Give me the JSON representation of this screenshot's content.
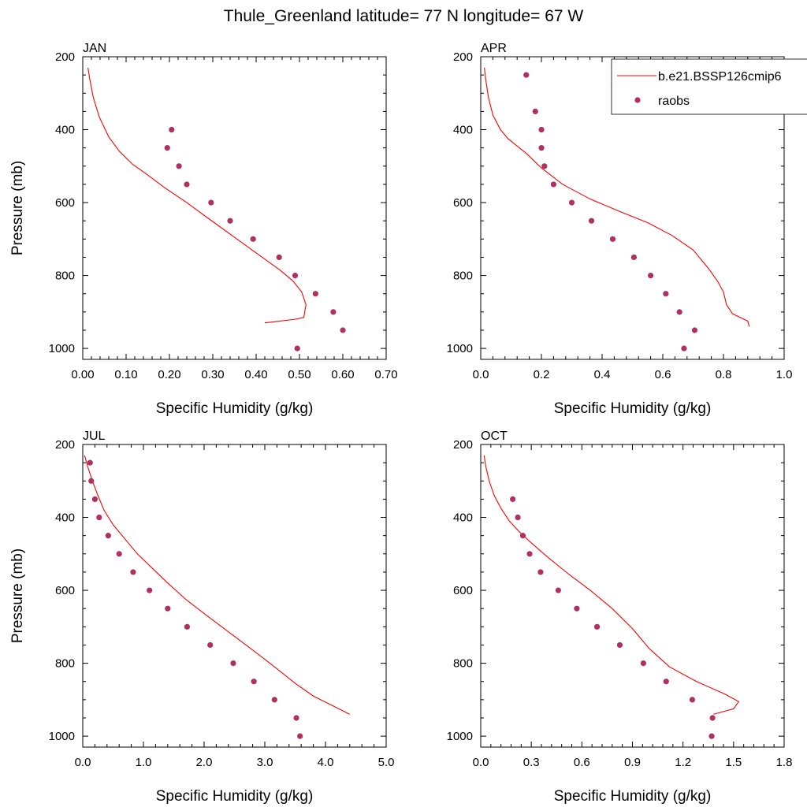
{
  "title": "Thule_Greenland  latitude= 77 N longitude= 67 W",
  "colors": {
    "model": "#ff0000",
    "obs": "#b03060",
    "axis": "#000000"
  },
  "legend": {
    "position": "top-right",
    "entries": [
      {
        "label": "b.e21.BSSP126cmip6",
        "kind": "line"
      },
      {
        "label": "raobs",
        "kind": "marker"
      }
    ]
  },
  "chart_data": [
    {
      "type": "line+scatter",
      "title": "JAN",
      "xlabel": "Specific Humidity (g/kg)",
      "ylabel": "Pressure (mb)",
      "xlim": [
        0,
        0.7
      ],
      "ylim": [
        200,
        1030
      ],
      "y_inverted": true,
      "xticks": [
        0,
        0.1,
        0.2,
        0.3,
        0.4,
        0.5,
        0.6,
        0.7
      ],
      "xtick_labels": [
        "0.00",
        "0.10",
        "0.20",
        "0.30",
        "0.40",
        "0.50",
        "0.60",
        "0.70"
      ],
      "yticks": [
        200,
        400,
        600,
        800,
        1000
      ],
      "ytick_labels": [
        "200",
        "400",
        "600",
        "800",
        "1000"
      ],
      "series": [
        {
          "name": "b.e21.BSSP126cmip6",
          "kind": "line",
          "x": [
            0.012,
            0.016,
            0.024,
            0.038,
            0.06,
            0.085,
            0.115,
            0.145,
            0.19,
            0.24,
            0.28,
            0.315,
            0.35,
            0.385,
            0.42,
            0.455,
            0.485,
            0.505,
            0.515,
            0.51,
            0.49,
            0.42
          ],
          "y": [
            230,
            260,
            310,
            365,
            420,
            460,
            495,
            520,
            560,
            600,
            635,
            665,
            695,
            725,
            755,
            785,
            815,
            845,
            880,
            915,
            920,
            930
          ]
        },
        {
          "name": "raobs",
          "kind": "marker",
          "x": [
            0.205,
            0.195,
            0.222,
            0.24,
            0.296,
            0.34,
            0.393,
            0.453,
            0.49,
            0.537,
            0.578,
            0.6,
            0.495
          ],
          "y": [
            400,
            450,
            500,
            550,
            600,
            650,
            700,
            750,
            800,
            850,
            900,
            950,
            1000
          ]
        }
      ]
    },
    {
      "type": "line+scatter",
      "title": "APR",
      "xlabel": "Specific Humidity (g/kg)",
      "ylabel": "",
      "xlim": [
        0,
        1.0
      ],
      "ylim": [
        200,
        1030
      ],
      "y_inverted": true,
      "xticks": [
        0,
        0.2,
        0.4,
        0.6,
        0.8,
        1.0
      ],
      "xtick_labels": [
        "0.0",
        "0.2",
        "0.4",
        "0.6",
        "0.8",
        "1.0"
      ],
      "yticks": [
        200,
        400,
        600,
        800,
        1000
      ],
      "ytick_labels": [
        "200",
        "400",
        "600",
        "800",
        "1000"
      ],
      "series": [
        {
          "name": "b.e21.BSSP126cmip6",
          "kind": "line",
          "x": [
            0.012,
            0.016,
            0.025,
            0.04,
            0.065,
            0.09,
            0.12,
            0.15,
            0.2,
            0.27,
            0.36,
            0.46,
            0.55,
            0.63,
            0.7,
            0.75,
            0.78,
            0.8,
            0.81,
            0.83,
            0.88,
            0.885
          ],
          "y": [
            230,
            260,
            310,
            360,
            400,
            425,
            445,
            465,
            505,
            550,
            590,
            625,
            655,
            690,
            730,
            780,
            815,
            845,
            880,
            905,
            925,
            940
          ]
        },
        {
          "name": "raobs",
          "kind": "marker",
          "x": [
            0.15,
            0.18,
            0.2,
            0.2,
            0.21,
            0.24,
            0.3,
            0.365,
            0.435,
            0.505,
            0.56,
            0.61,
            0.655,
            0.705,
            0.67
          ],
          "y": [
            250,
            350,
            400,
            450,
            500,
            550,
            600,
            650,
            700,
            750,
            800,
            850,
            900,
            950,
            1000
          ]
        }
      ]
    },
    {
      "type": "line+scatter",
      "title": "JUL",
      "xlabel": "Specific Humidity (g/kg)",
      "ylabel": "Pressure (mb)",
      "xlim": [
        0,
        5.0
      ],
      "ylim": [
        200,
        1030
      ],
      "y_inverted": true,
      "xticks": [
        0,
        1,
        2,
        3,
        4,
        5
      ],
      "xtick_labels": [
        "0.0",
        "1.0",
        "2.0",
        "3.0",
        "4.0",
        "5.0"
      ],
      "yticks": [
        200,
        400,
        600,
        800,
        1000
      ],
      "ytick_labels": [
        "200",
        "400",
        "600",
        "800",
        "1000"
      ],
      "series": [
        {
          "name": "b.e21.BSSP126cmip6",
          "kind": "line",
          "x": [
            0.03,
            0.08,
            0.16,
            0.25,
            0.35,
            0.5,
            0.7,
            0.9,
            1.15,
            1.4,
            1.7,
            2.05,
            2.45,
            2.85,
            3.2,
            3.5,
            3.8,
            4.1,
            4.4
          ],
          "y": [
            230,
            260,
            300,
            340,
            380,
            420,
            460,
            500,
            540,
            580,
            625,
            670,
            720,
            770,
            815,
            855,
            890,
            915,
            940
          ]
        },
        {
          "name": "raobs",
          "kind": "marker",
          "x": [
            0.12,
            0.14,
            0.2,
            0.27,
            0.42,
            0.6,
            0.83,
            1.1,
            1.4,
            1.72,
            2.1,
            2.48,
            2.82,
            3.16,
            3.52,
            3.58
          ],
          "y": [
            250,
            300,
            350,
            400,
            450,
            500,
            550,
            600,
            650,
            700,
            750,
            800,
            850,
            900,
            950,
            1000
          ]
        }
      ]
    },
    {
      "type": "line+scatter",
      "title": "OCT",
      "xlabel": "Specific Humidity (g/kg)",
      "ylabel": "",
      "xlim": [
        0,
        1.8
      ],
      "ylim": [
        200,
        1030
      ],
      "y_inverted": true,
      "xticks": [
        0,
        0.3,
        0.6,
        0.9,
        1.2,
        1.5,
        1.8
      ],
      "xtick_labels": [
        "0.0",
        "0.3",
        "0.6",
        "0.9",
        "1.2",
        "1.5",
        "1.8"
      ],
      "yticks": [
        200,
        400,
        600,
        800,
        1000
      ],
      "ytick_labels": [
        "200",
        "400",
        "600",
        "800",
        "1000"
      ],
      "series": [
        {
          "name": "b.e21.BSSP126cmip6",
          "kind": "line",
          "x": [
            0.02,
            0.03,
            0.05,
            0.08,
            0.12,
            0.17,
            0.23,
            0.3,
            0.4,
            0.52,
            0.65,
            0.78,
            0.9,
            1.0,
            1.12,
            1.28,
            1.45,
            1.53,
            1.5,
            1.38
          ],
          "y": [
            230,
            260,
            300,
            340,
            375,
            410,
            440,
            470,
            510,
            555,
            600,
            650,
            705,
            760,
            810,
            850,
            885,
            905,
            925,
            940
          ]
        },
        {
          "name": "raobs",
          "kind": "marker",
          "x": [
            0.19,
            0.22,
            0.25,
            0.29,
            0.355,
            0.46,
            0.57,
            0.69,
            0.825,
            0.965,
            1.1,
            1.255,
            1.375,
            1.37
          ],
          "y": [
            350,
            400,
            450,
            500,
            550,
            600,
            650,
            700,
            750,
            800,
            850,
            900,
            950,
            1000
          ]
        }
      ]
    }
  ]
}
